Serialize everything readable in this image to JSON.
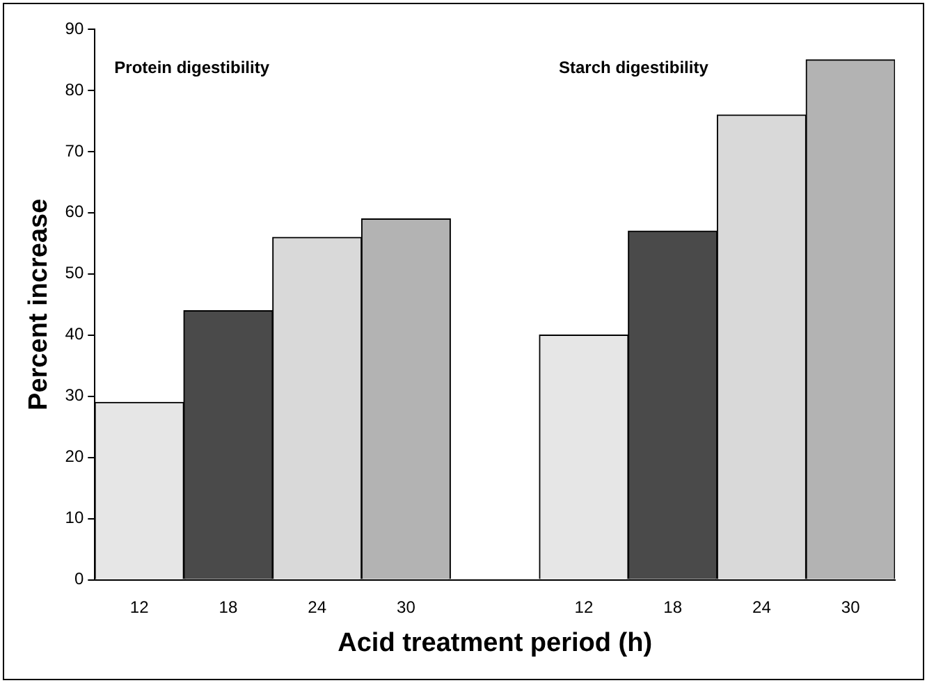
{
  "chart_data": {
    "type": "bar",
    "xlabel": "Acid treatment period (h)",
    "ylabel": "Percent increase",
    "categories": [
      "12",
      "18",
      "24",
      "30",
      null,
      "12",
      "18",
      "24",
      "30"
    ],
    "values": [
      29,
      44,
      56,
      59,
      null,
      40,
      57,
      76,
      85
    ],
    "colors": [
      "#e6e6e6",
      "#4a4a4a",
      "#d9d9d9",
      "#b3b3b3",
      null,
      "#e6e6e6",
      "#4a4a4a",
      "#d9d9d9",
      "#b3b3b3"
    ],
    "ylim": [
      0,
      90
    ],
    "yticks": [
      0,
      10,
      20,
      30,
      40,
      50,
      60,
      70,
      80,
      90
    ],
    "grid": false,
    "legend": false,
    "annotations": [
      "Protein digestibility",
      "Starch digestibility"
    ]
  }
}
